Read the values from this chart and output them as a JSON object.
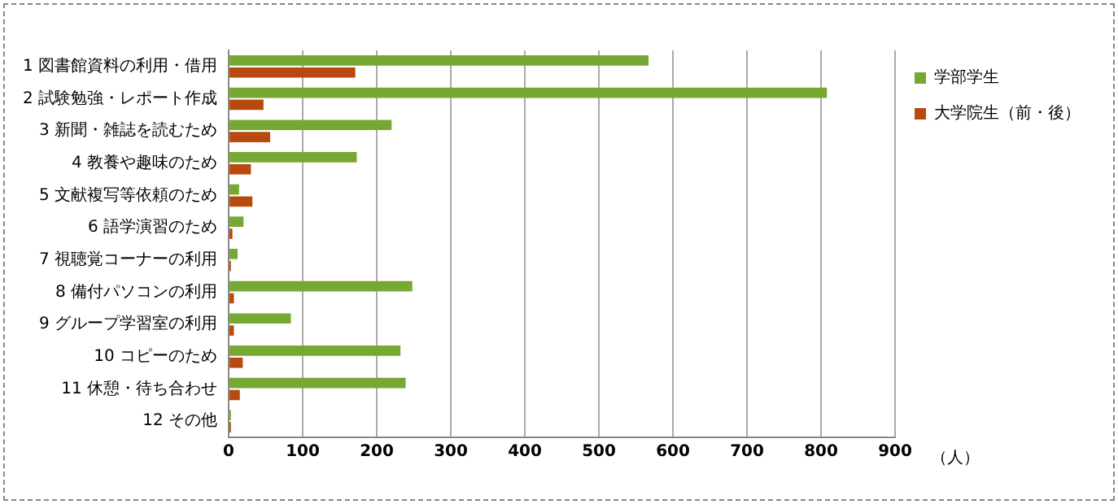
{
  "chart_data": {
    "type": "bar",
    "orientation": "horizontal",
    "categories": [
      "1 図書館資料の利用・借用",
      "2 試験勉強・レポート作成",
      "3 新聞・雑誌を読むため",
      "4 教養や趣味のため",
      "5 文献複写等依頼のため",
      "6 語学演習のため",
      "7 視聴覚コーナーの利用",
      "8 備付パソコンの利用",
      "9 グループ学習室の利用",
      "10 コピーのため",
      "11 休憩・待ち合わせ",
      "12 その他"
    ],
    "series": [
      {
        "name": "学部学生",
        "color": "#77a832",
        "values": [
          567,
          808,
          220,
          173,
          14,
          20,
          12,
          248,
          84,
          232,
          239,
          3
        ]
      },
      {
        "name": "大学院生（前・後）",
        "color": "#b84a0f",
        "values": [
          171,
          47,
          56,
          30,
          32,
          5,
          3,
          7,
          7,
          19,
          15,
          3
        ]
      }
    ],
    "xlim": [
      0,
      900
    ],
    "xticks": [
      0,
      100,
      200,
      300,
      400,
      500,
      600,
      700,
      800,
      900
    ],
    "xlabel": "（人）",
    "grid": "x",
    "legend": "right"
  }
}
